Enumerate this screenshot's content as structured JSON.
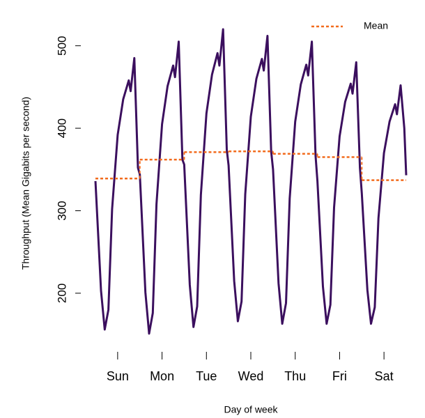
{
  "chart_data": {
    "type": "line",
    "xlabel": "Day of week",
    "ylabel": "Throughput (Mean Gigabits per second)",
    "xlim": [
      -0.5,
      6.5
    ],
    "xticks": [
      {
        "value": 0,
        "label": "Sun"
      },
      {
        "value": 1,
        "label": "Mon"
      },
      {
        "value": 2,
        "label": "Tue"
      },
      {
        "value": 3,
        "label": "Wed"
      },
      {
        "value": 4,
        "label": "Thu"
      },
      {
        "value": 5,
        "label": "Fri"
      },
      {
        "value": 6,
        "label": "Sat"
      }
    ],
    "ylim": [
      145,
      520
    ],
    "yticks": [
      200,
      300,
      400,
      500
    ],
    "legend": "top-right",
    "series": [
      {
        "color": "#3b0f5e",
        "x": [
          -0.5,
          -0.375,
          -0.292,
          -0.208,
          -0.125,
          0,
          0.125,
          0.25,
          0.292,
          0.375,
          0.458,
          0.5,
          0.625,
          0.708,
          0.792,
          0.875,
          1,
          1.125,
          1.25,
          1.292,
          1.375,
          1.458,
          1.5,
          1.625,
          1.708,
          1.792,
          1.875,
          2,
          2.125,
          2.25,
          2.292,
          2.375,
          2.458,
          2.5,
          2.625,
          2.708,
          2.792,
          2.875,
          3,
          3.125,
          3.25,
          3.292,
          3.375,
          3.458,
          3.5,
          3.625,
          3.708,
          3.792,
          3.875,
          4,
          4.125,
          4.25,
          4.292,
          4.375,
          4.458,
          4.5,
          4.625,
          4.708,
          4.792,
          4.875,
          5,
          5.125,
          5.25,
          5.292,
          5.375,
          5.458,
          5.5,
          5.625,
          5.708,
          5.792,
          5.875,
          6,
          6.125,
          6.25,
          6.292,
          6.375,
          6.458,
          6.5
        ],
        "values": [
          336,
          203,
          156,
          180,
          302,
          392,
          435,
          458,
          445,
          485,
          352,
          344,
          201,
          151,
          176,
          308,
          405,
          451,
          476,
          462,
          505,
          362,
          356,
          210,
          159,
          184,
          319,
          418,
          465,
          491,
          476,
          520,
          374,
          355,
          215,
          166,
          190,
          320,
          414,
          460,
          484,
          470,
          512,
          372,
          350,
          212,
          163,
          188,
          315,
          408,
          453,
          477,
          464,
          505,
          367,
          336,
          208,
          163,
          186,
          304,
          390,
          432,
          454,
          442,
          480,
          352,
          321,
          204,
          163,
          183,
          291,
          370,
          408,
          429,
          417,
          452,
          400,
          343
        ]
      },
      {
        "name": "Mean",
        "color": "#f26b1d",
        "dashed": true,
        "x": [
          0,
          1,
          2,
          3,
          4,
          5,
          6
        ],
        "values": [
          339,
          362,
          371,
          372,
          369,
          365,
          337
        ]
      }
    ]
  }
}
